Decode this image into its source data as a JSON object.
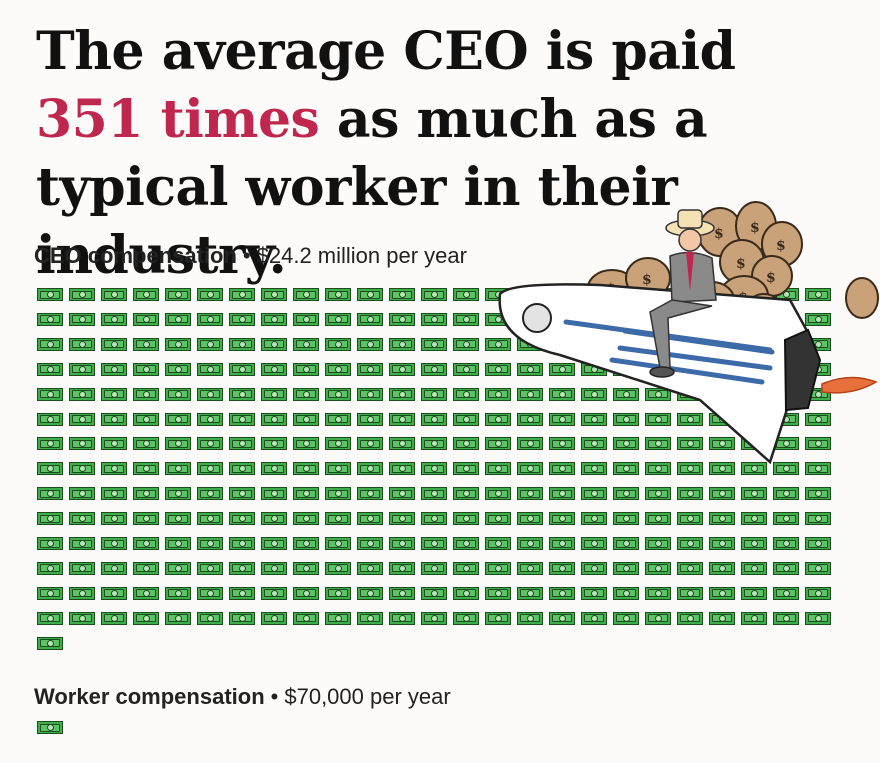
{
  "headline": {
    "part1": "The average CEO is paid",
    "highlight": "351 times",
    "part2": "as much as a typical worker in their industry."
  },
  "ceo": {
    "title": "CEO compensation",
    "separator": "•",
    "amount": "$24.2 million per year",
    "bill_count": 351
  },
  "worker": {
    "title": "Worker compensation",
    "separator": "•",
    "amount": "$70,000 per year",
    "bill_count": 1
  },
  "colors": {
    "accent": "#c0274f",
    "bill_green": "#3fae4a",
    "rocket_stripe": "#3d6aa8",
    "flame": "#e8713b",
    "money_bag": "#c9a27a"
  },
  "icons": {
    "bill": "dollar-bill-icon",
    "illustration": "ceo-on-rocket-with-money-bags"
  }
}
